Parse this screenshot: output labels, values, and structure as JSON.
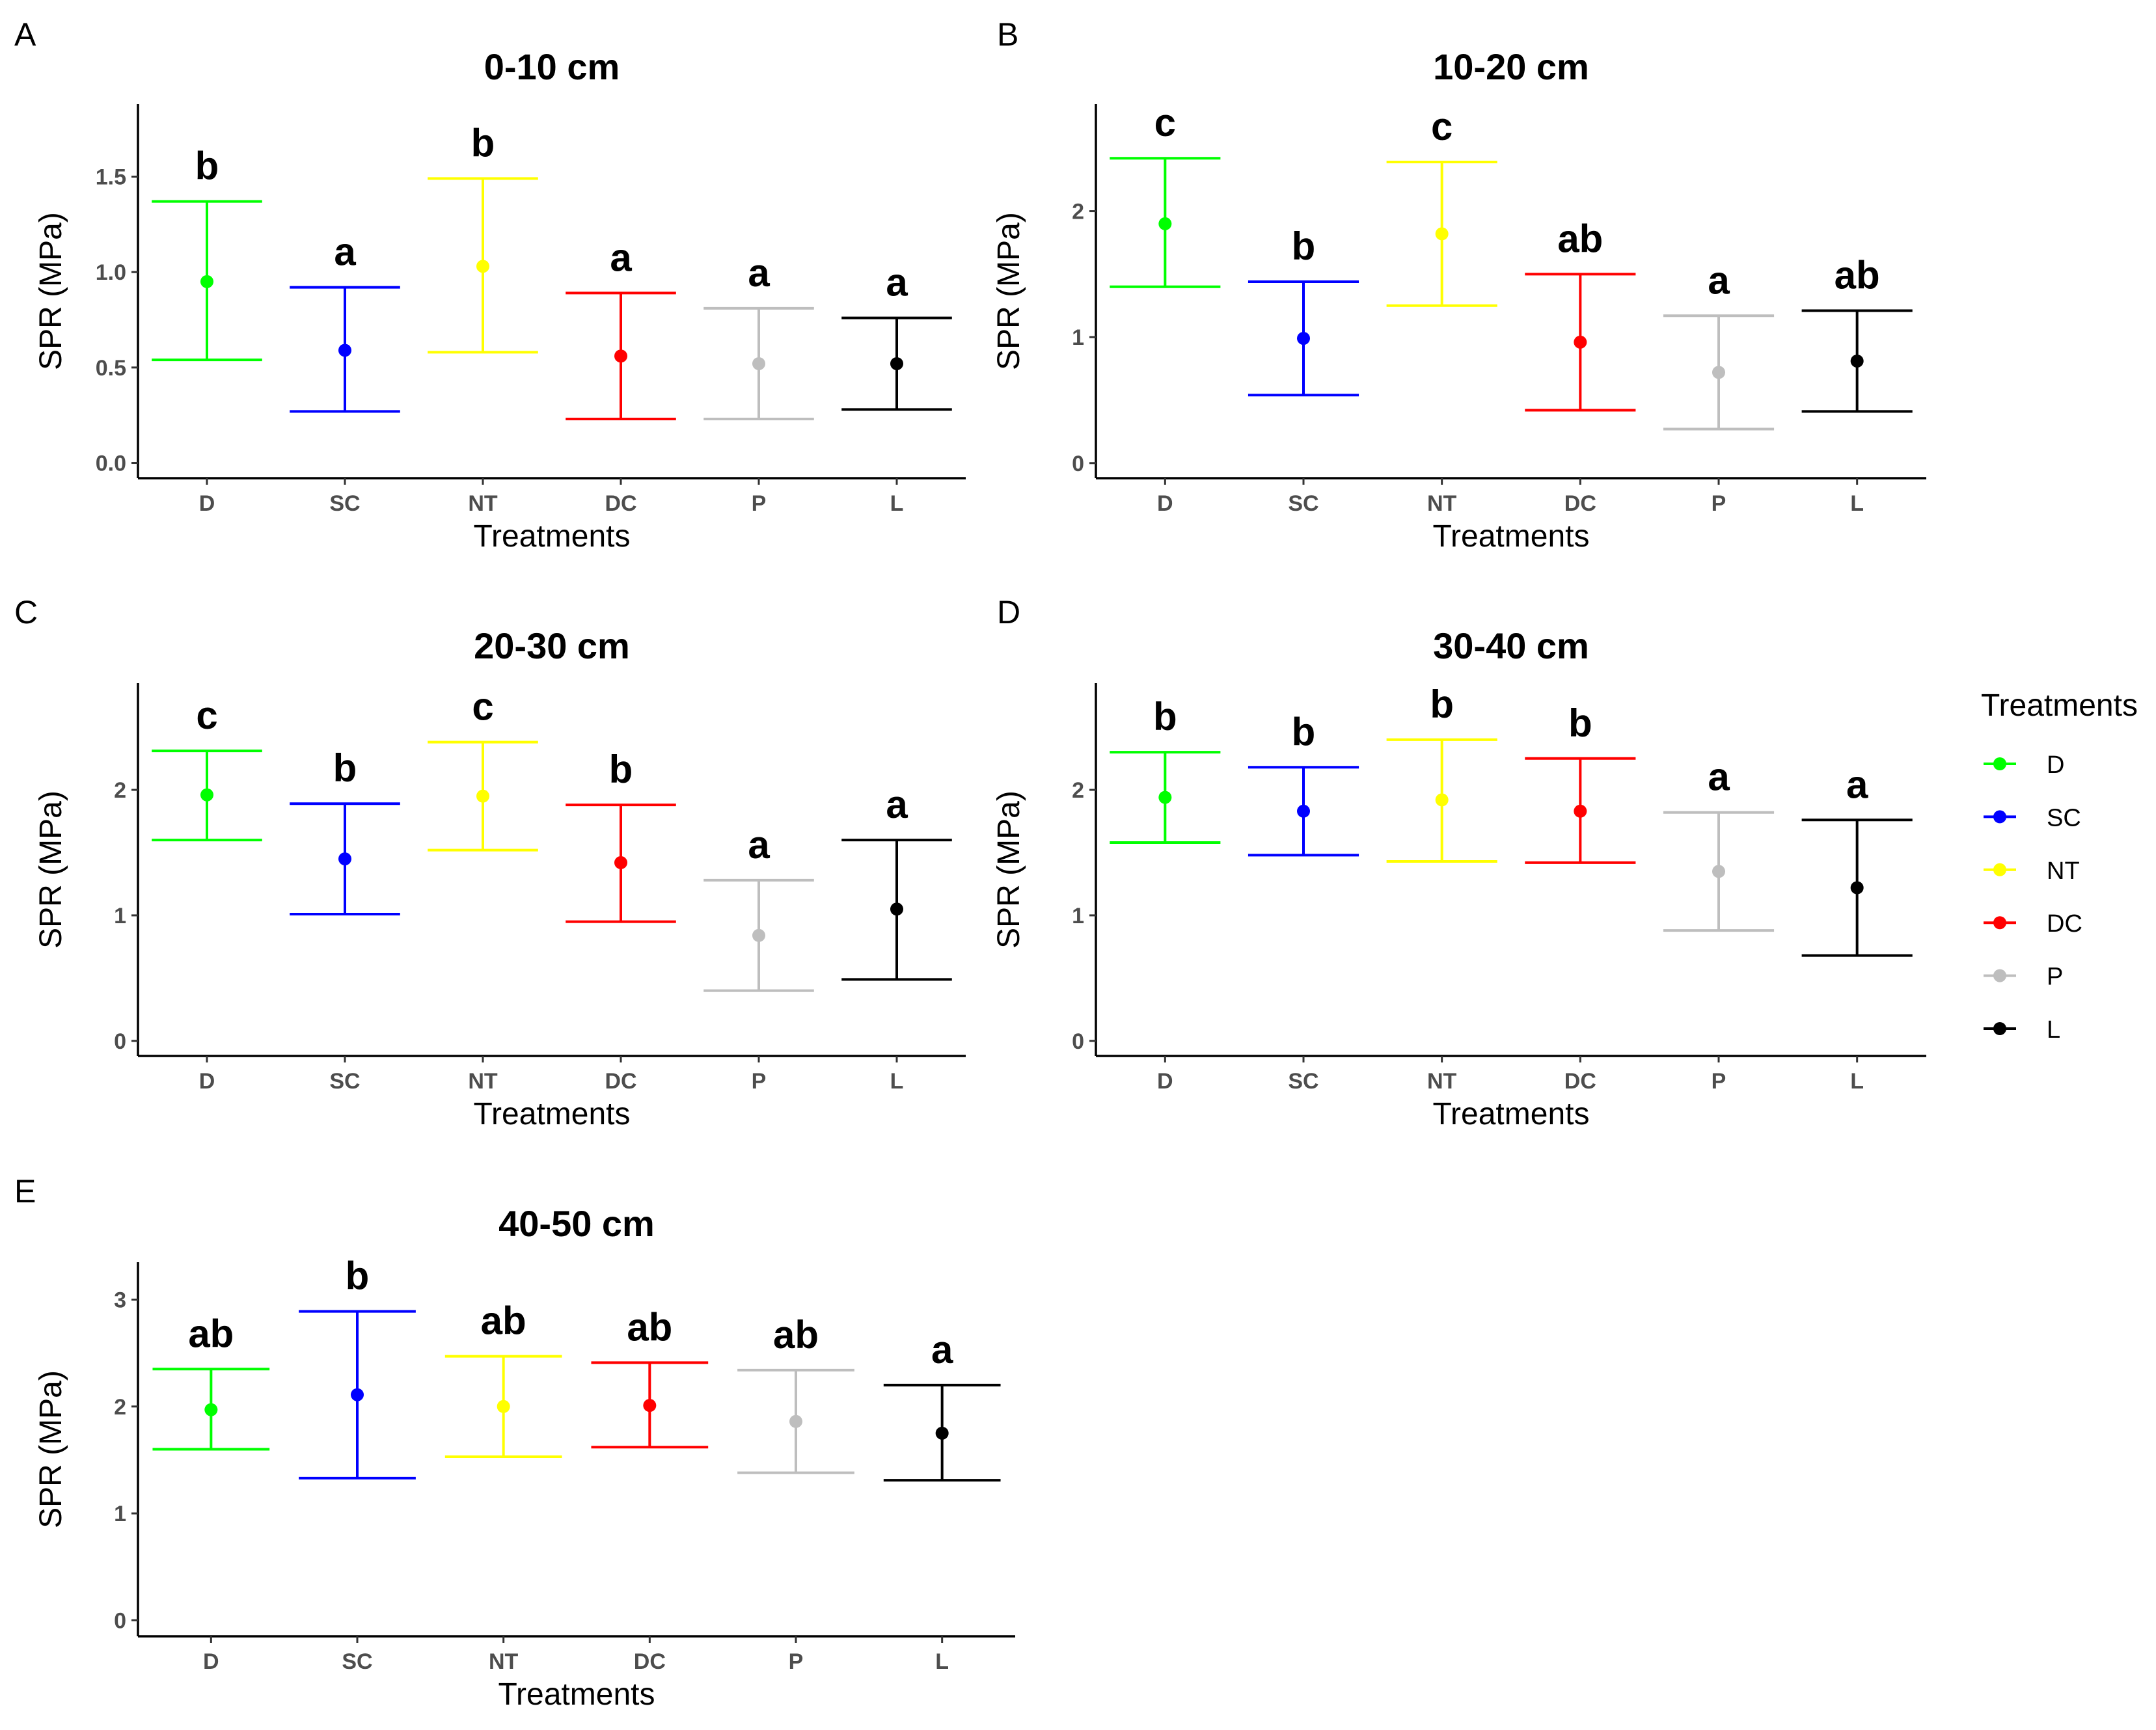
{
  "legend": {
    "title": "Treatments",
    "items": [
      {
        "label": "D",
        "color": "#00ff00"
      },
      {
        "label": "SC",
        "color": "#0000ff"
      },
      {
        "label": "NT",
        "color": "#ffff00"
      },
      {
        "label": "DC",
        "color": "#ff0000"
      },
      {
        "label": "P",
        "color": "#bebebe"
      },
      {
        "label": "L",
        "color": "#000000"
      }
    ]
  },
  "chart_data": [
    {
      "panel": "A",
      "type": "scatter",
      "title": "0-10 cm",
      "xlabel": "Treatments",
      "ylabel": "SPR (MPa)",
      "categories": [
        "D",
        "SC",
        "NT",
        "DC",
        "P",
        "L"
      ],
      "ylim": [
        -0.08,
        1.88
      ],
      "yticks": [
        0.0,
        0.5,
        1.0,
        1.5
      ],
      "ytick_labels": [
        "0.0",
        "0.5",
        "1.0",
        "1.5"
      ],
      "means": [
        0.95,
        0.59,
        1.03,
        0.56,
        0.52,
        0.52
      ],
      "lower": [
        0.54,
        0.27,
        0.58,
        0.23,
        0.23,
        0.28
      ],
      "upper": [
        1.37,
        0.92,
        1.49,
        0.89,
        0.81,
        0.76
      ],
      "letters": [
        "b",
        "a",
        "b",
        "a",
        "a",
        "a"
      ]
    },
    {
      "panel": "B",
      "type": "scatter",
      "title": "10-20 cm",
      "xlabel": "Treatments",
      "ylabel": "SPR (MPa)",
      "categories": [
        "D",
        "SC",
        "NT",
        "DC",
        "P",
        "L"
      ],
      "ylim": [
        -0.12,
        2.85
      ],
      "yticks": [
        0,
        1,
        2
      ],
      "ytick_labels": [
        "0",
        "1",
        "2"
      ],
      "means": [
        1.9,
        0.99,
        1.82,
        0.96,
        0.72,
        0.81
      ],
      "lower": [
        1.4,
        0.54,
        1.25,
        0.42,
        0.27,
        0.41
      ],
      "upper": [
        2.42,
        1.44,
        2.39,
        1.5,
        1.17,
        1.21
      ],
      "letters": [
        "c",
        "b",
        "c",
        "ab",
        "a",
        "ab"
      ]
    },
    {
      "panel": "C",
      "type": "scatter",
      "title": "20-30 cm",
      "xlabel": "Treatments",
      "ylabel": "SPR (MPa)",
      "categories": [
        "D",
        "SC",
        "NT",
        "DC",
        "P",
        "L"
      ],
      "ylim": [
        -0.12,
        2.85
      ],
      "yticks": [
        0,
        1,
        2
      ],
      "ytick_labels": [
        "0",
        "1",
        "2"
      ],
      "means": [
        1.96,
        1.45,
        1.95,
        1.42,
        0.84,
        1.05
      ],
      "lower": [
        1.6,
        1.01,
        1.52,
        0.95,
        0.4,
        0.49
      ],
      "upper": [
        2.31,
        1.89,
        2.38,
        1.88,
        1.28,
        1.6
      ],
      "letters": [
        "c",
        "b",
        "c",
        "b",
        "a",
        "a"
      ]
    },
    {
      "panel": "D",
      "type": "scatter",
      "title": "30-40 cm",
      "xlabel": "Treatments",
      "ylabel": "SPR (MPa)",
      "categories": [
        "D",
        "SC",
        "NT",
        "DC",
        "P",
        "L"
      ],
      "ylim": [
        -0.12,
        2.85
      ],
      "yticks": [
        0,
        1,
        2
      ],
      "ytick_labels": [
        "0",
        "1",
        "2"
      ],
      "means": [
        1.94,
        1.83,
        1.92,
        1.83,
        1.35,
        1.22
      ],
      "lower": [
        1.58,
        1.48,
        1.43,
        1.42,
        0.88,
        0.68
      ],
      "upper": [
        2.3,
        2.18,
        2.4,
        2.25,
        1.82,
        1.76
      ],
      "letters": [
        "b",
        "b",
        "b",
        "b",
        "a",
        "a"
      ]
    },
    {
      "panel": "E",
      "type": "scatter",
      "title": "40-50 cm",
      "xlabel": "Treatments",
      "ylabel": "SPR (MPa)",
      "categories": [
        "D",
        "SC",
        "NT",
        "DC",
        "P",
        "L"
      ],
      "ylim": [
        -0.15,
        3.35
      ],
      "yticks": [
        0,
        1,
        2,
        3
      ],
      "ytick_labels": [
        "0",
        "1",
        "2",
        "3"
      ],
      "means": [
        1.97,
        2.11,
        2.0,
        2.01,
        1.86,
        1.75
      ],
      "lower": [
        1.6,
        1.33,
        1.53,
        1.62,
        1.38,
        1.31
      ],
      "upper": [
        2.35,
        2.89,
        2.47,
        2.41,
        2.34,
        2.2
      ],
      "letters": [
        "ab",
        "b",
        "ab",
        "ab",
        "ab",
        "a"
      ]
    }
  ]
}
